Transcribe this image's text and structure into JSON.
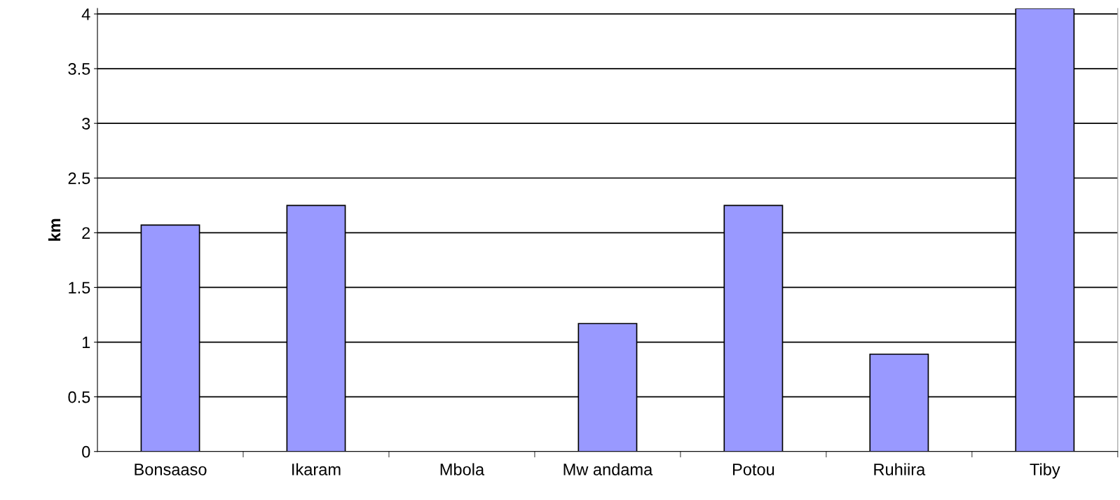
{
  "chart_data": {
    "type": "bar",
    "ylabel": "km",
    "categories": [
      "Bonsaaso",
      "Ikaram",
      "Mbola",
      "Mw andama",
      "Potou",
      "Ruhiira",
      "Tiby"
    ],
    "values": [
      2.07,
      2.25,
      null,
      1.17,
      2.25,
      0.89,
      4.05
    ],
    "color": "#9999ff",
    "ylim": [
      0,
      4.05
    ],
    "yticks": [
      0,
      0.5,
      1,
      1.5,
      2,
      2.5,
      3,
      3.5,
      4
    ],
    "grid": "y",
    "legend": false
  }
}
